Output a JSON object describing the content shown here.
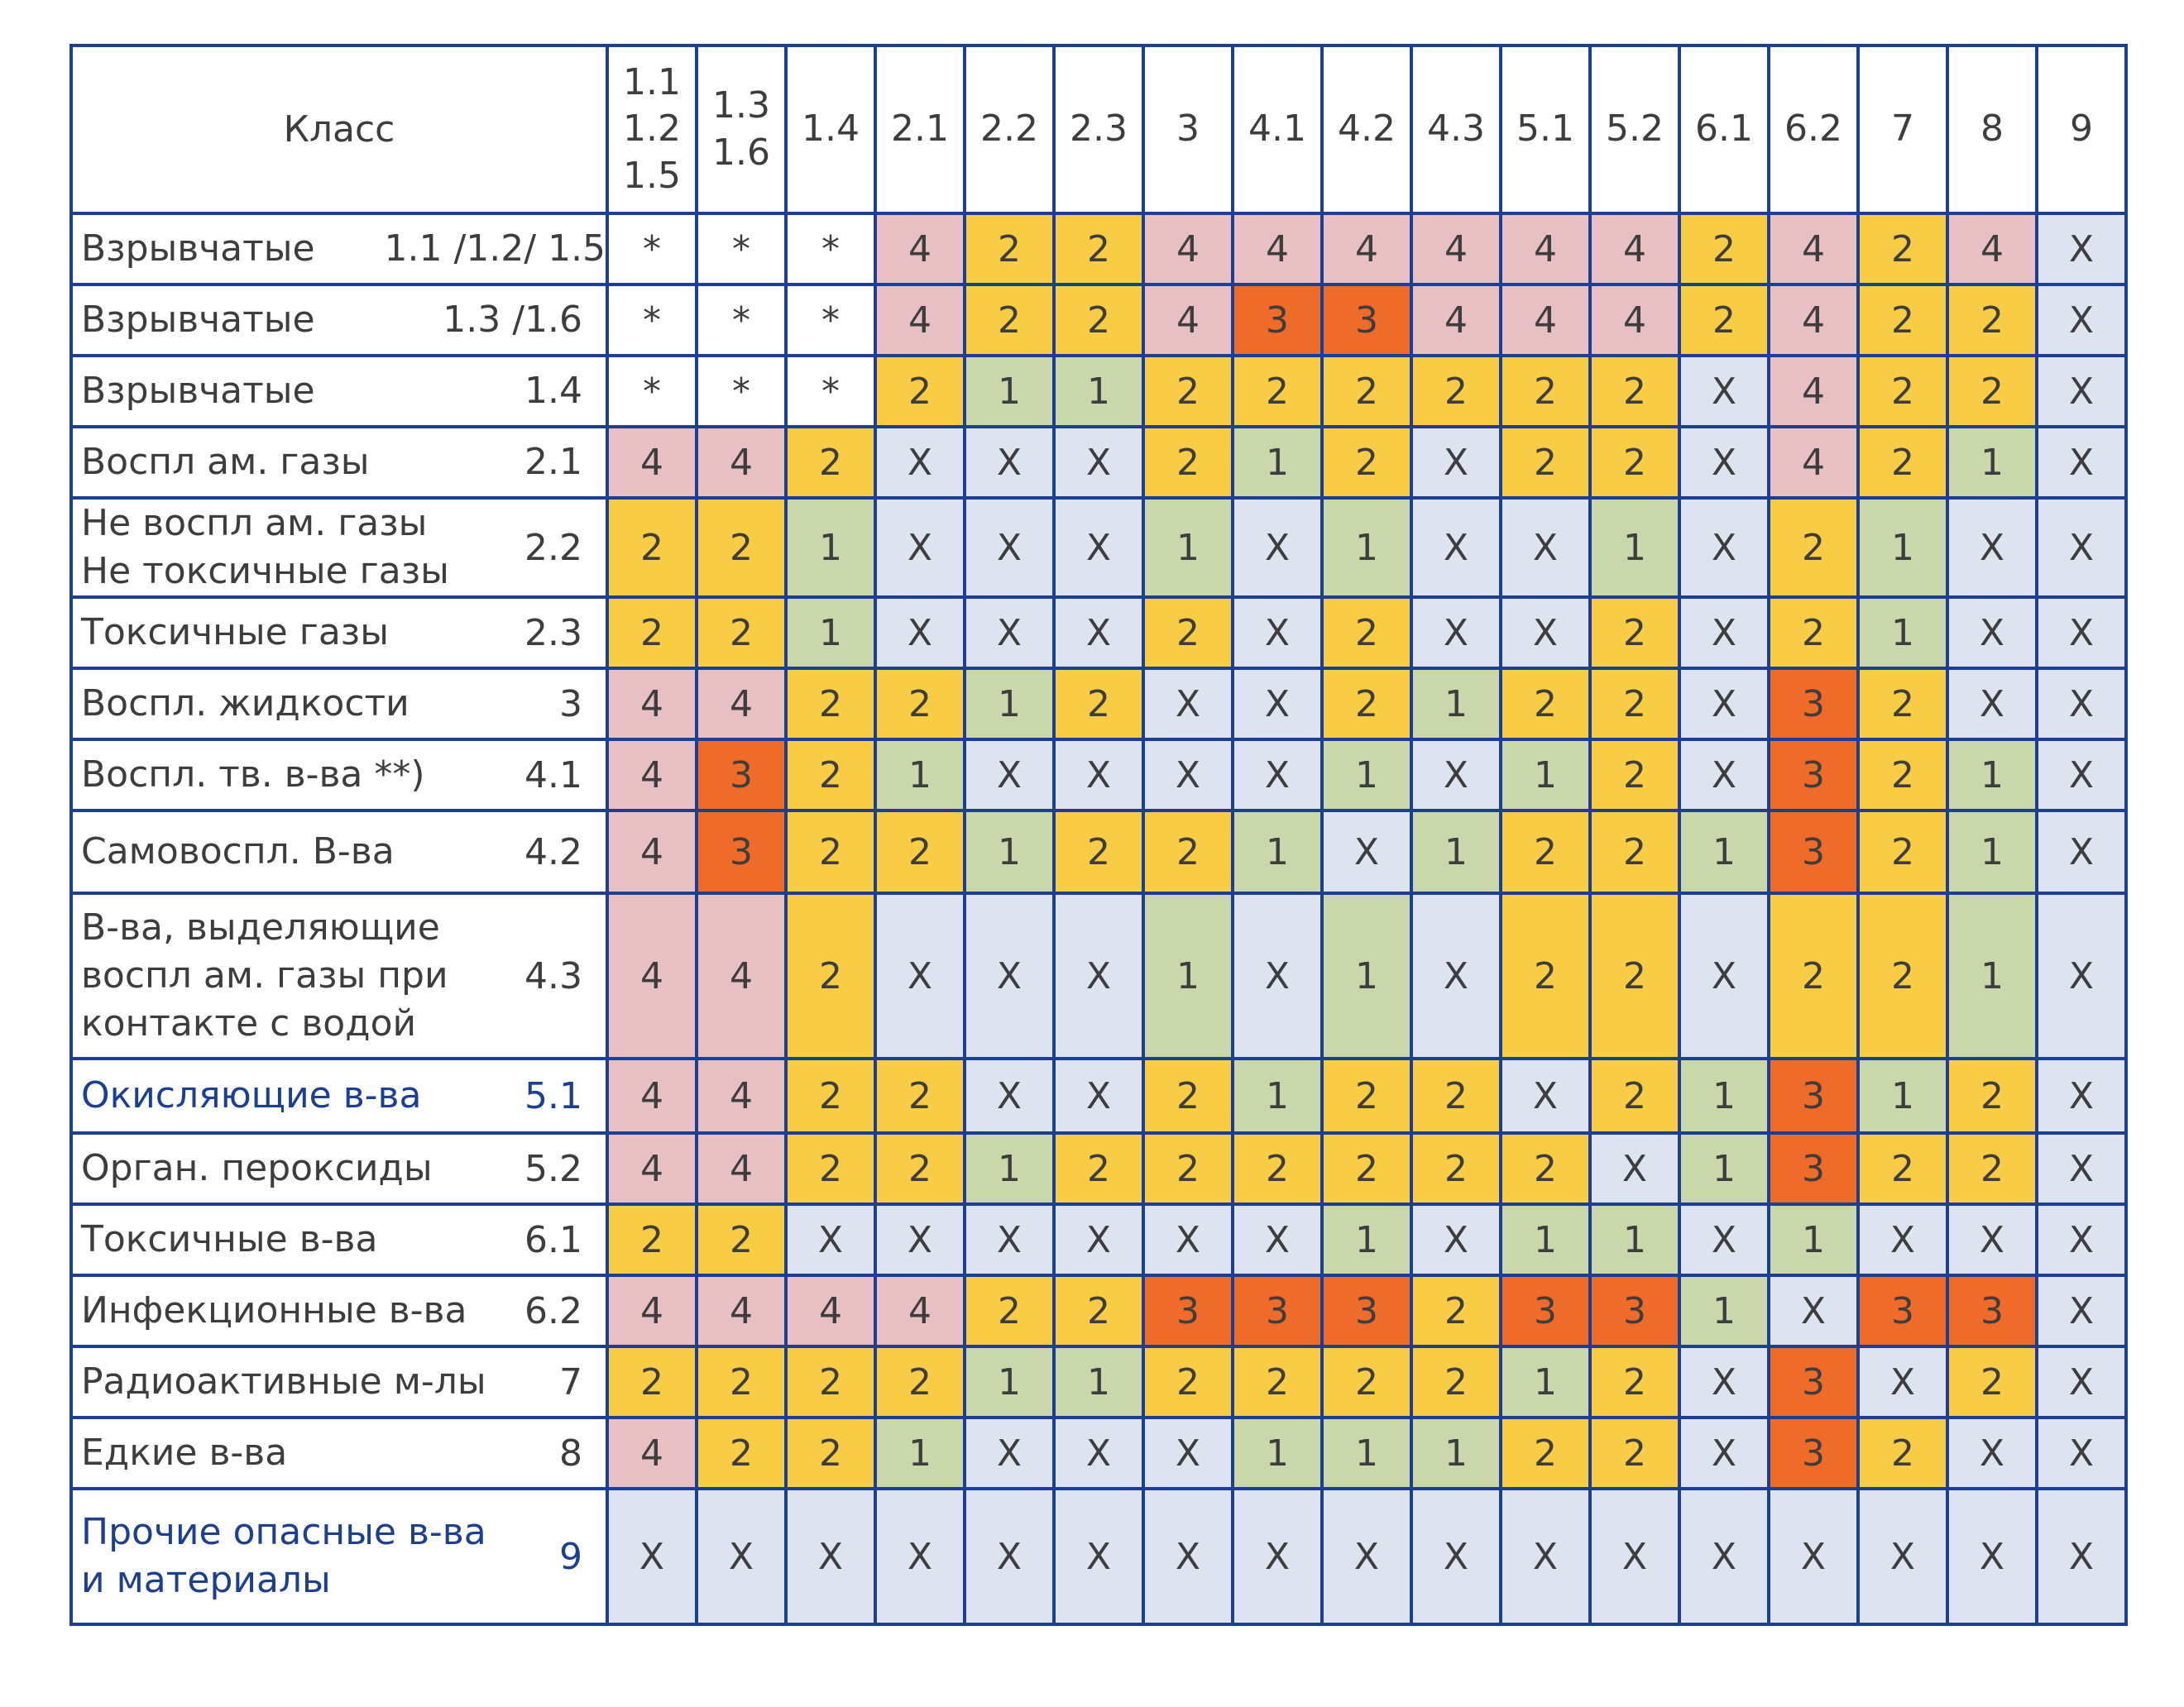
{
  "header": {
    "class_label": "Класс",
    "columns": [
      "1.1\n1.2\n1.5",
      "1.3\n1.6",
      "1.4",
      "2.1",
      "2.2",
      "2.3",
      "3",
      "4.1",
      "4.2",
      "4.3",
      "5.1",
      "5.2",
      "6.1",
      "6.2",
      "7",
      "8",
      "9"
    ]
  },
  "rows": [
    {
      "label": "Взрывчатые      1.1 /1.2/ 1.5",
      "cls": "",
      "values": [
        "*",
        "*",
        "*",
        "4",
        "2",
        "2",
        "4",
        "4",
        "4",
        "4",
        "4",
        "4",
        "2",
        "4",
        "2",
        "4",
        "X"
      ]
    },
    {
      "label": "Взрывчатые",
      "cls": "1.3 /1.6",
      "values": [
        "*",
        "*",
        "*",
        "4",
        "2",
        "2",
        "4",
        "3",
        "3",
        "4",
        "4",
        "4",
        "2",
        "4",
        "2",
        "2",
        "X"
      ]
    },
    {
      "label": "Взрывчатые",
      "cls": "1.4",
      "values": [
        "*",
        "*",
        "*",
        "2",
        "1",
        "1",
        "2",
        "2",
        "2",
        "2",
        "2",
        "2",
        "X",
        "4",
        "2",
        "2",
        "X"
      ]
    },
    {
      "label": "Воспл а м. газы",
      "cls": "2.1",
      "values": [
        "4",
        "4",
        "2",
        "X",
        "X",
        "X",
        "2",
        "1",
        "2",
        "X",
        "2",
        "2",
        "X",
        "4",
        "2",
        "1",
        "X"
      ]
    },
    {
      "label": "Не воспл а м. газы\nНе токсичные газы",
      "cls": "2.2",
      "values": [
        "2",
        "2",
        "1",
        "X",
        "X",
        "X",
        "1",
        "X",
        "1",
        "X",
        "X",
        "1",
        "X",
        "2",
        "1",
        "X",
        "X"
      ]
    },
    {
      "label": "Токсичные газы",
      "cls": "2.3",
      "values": [
        "2",
        "2",
        "1",
        "X",
        "X",
        "X",
        "2",
        "X",
        "2",
        "X",
        "X",
        "2",
        "X",
        "2",
        "1",
        "X",
        "X"
      ]
    },
    {
      "label": "Воспл. жидкости",
      "cls": "3",
      "values": [
        "4",
        "4",
        "2",
        "2",
        "1",
        "2",
        "X",
        "X",
        "2",
        "1",
        "2",
        "2",
        "X",
        "3",
        "2",
        "X",
        "X"
      ]
    },
    {
      "label": "Воспл. тв. в-ва **)",
      "cls": "4.1",
      "values": [
        "4",
        "3",
        "2",
        "1",
        "X",
        "X",
        "X",
        "X",
        "1",
        "X",
        "1",
        "2",
        "X",
        "3",
        "2",
        "1",
        "X"
      ]
    },
    {
      "label": "Самовоспл. В-ва",
      "cls": "4.2",
      "values": [
        "4",
        "3",
        "2",
        "2",
        "1",
        "2",
        "2",
        "1",
        "X",
        "1",
        "2",
        "2",
        "1",
        "3",
        "2",
        "1",
        "X"
      ]
    },
    {
      "label": "В-ва, выделяющие\nвоспл а м. газы при\nконтакте с водой",
      "cls": "4.3",
      "values": [
        "4",
        "4",
        "2",
        "X",
        "X",
        "X",
        "1",
        "X",
        "1",
        "X",
        "2",
        "2",
        "X",
        "2",
        "2",
        "1",
        "X"
      ]
    },
    {
      "label": "Окисляющие в-ва",
      "cls": "5.1",
      "blue": true,
      "values": [
        "4",
        "4",
        "2",
        "2",
        "X",
        "X",
        "2",
        "1",
        "2",
        "2",
        "X",
        "2",
        "1",
        "3",
        "1",
        "2",
        "X"
      ]
    },
    {
      "label": "Орган. пероксиды",
      "cls": "5.2",
      "values": [
        "4",
        "4",
        "2",
        "2",
        "1",
        "2",
        "2",
        "2",
        "2",
        "2",
        "2",
        "X",
        "1",
        "3",
        "2",
        "2",
        "X"
      ]
    },
    {
      "label": "Токсичные в-ва",
      "cls": "6.1",
      "values": [
        "2",
        "2",
        "X",
        "X",
        "X",
        "X",
        "X",
        "X",
        "1",
        "X",
        "1",
        "1",
        "X",
        "1",
        "X",
        "X",
        "X"
      ]
    },
    {
      "label": "Инфекционные в-ва",
      "cls": "6.2",
      "values": [
        "4",
        "4",
        "4",
        "4",
        "2",
        "2",
        "3",
        "3",
        "3",
        "2",
        "3",
        "3",
        "1",
        "X",
        "3",
        "3",
        "X"
      ]
    },
    {
      "label": "Радиоактивные м-лы",
      "cls": "7",
      "values": [
        "2",
        "2",
        "2",
        "2",
        "1",
        "1",
        "2",
        "2",
        "2",
        "2",
        "1",
        "2",
        "X",
        "3",
        "X",
        "2",
        "X"
      ]
    },
    {
      "label": "Едкие в-ва",
      "cls": "8",
      "values": [
        "4",
        "2",
        "2",
        "1",
        "X",
        "X",
        "X",
        "1",
        "1",
        "1",
        "2",
        "2",
        "X",
        "3",
        "2",
        "X",
        "X"
      ]
    },
    {
      "label": "Прочие опасные в-ва\nи материалы",
      "cls": "9",
      "blue": true,
      "values": [
        "X",
        "X",
        "X",
        "X",
        "X",
        "X",
        "X",
        "X",
        "X",
        "X",
        "X",
        "X",
        "X",
        "X",
        "X",
        "X",
        "X"
      ]
    }
  ],
  "colors": {
    "border": "#1c3f91",
    "v4": "#e8bfc2",
    "v2": "#f9cc46",
    "v1": "#c9d7ab",
    "v3": "#ee6b2a",
    "vX": "#dde3ef"
  }
}
